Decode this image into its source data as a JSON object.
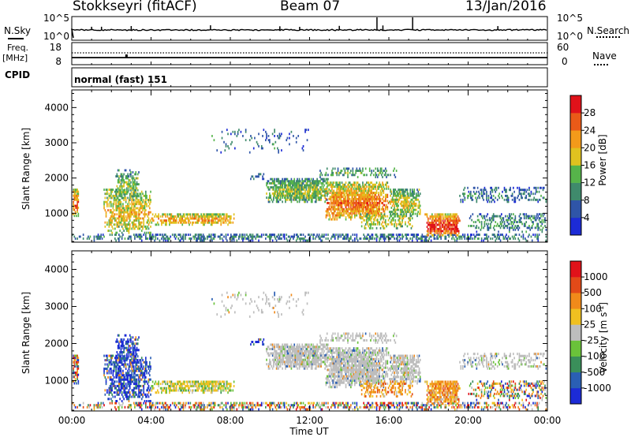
{
  "header": {
    "station": "Stokkseyri (fitACF)",
    "beam": "Beam 07",
    "date": "13/Jan/2016"
  },
  "strip_labels": {
    "nsky": "N.Sky",
    "nsearch": "N.Search",
    "freq": "Freq.",
    "freq_unit": "[MHz]",
    "nave": "Nave",
    "cpid": "CPID",
    "cpid_value": "normal (fast) 151"
  },
  "chart_data": [
    {
      "type": "line",
      "name": "noise-strip",
      "y_left_ticks": [
        "10^5",
        "10^0"
      ],
      "y_right_ticks": [
        "10^5",
        "10^0"
      ],
      "series": [
        {
          "name": "N.Sky",
          "style": "solid"
        },
        {
          "name": "N.Search",
          "style": "dotted"
        }
      ],
      "spikes_at_hours": [
        1,
        1.5,
        3,
        7,
        10.5,
        11.5,
        13.5,
        15.4,
        15.7,
        17.2,
        21.5
      ]
    },
    {
      "type": "line",
      "name": "freq-nave-strip",
      "y_left_ticks": [
        "18",
        "8"
      ],
      "y_right_ticks": [
        "60",
        "0"
      ],
      "series": [
        {
          "name": "Freq.",
          "style": "solid",
          "value_mhz": 10
        },
        {
          "name": "Nave",
          "style": "dotted",
          "value": 28
        }
      ]
    },
    {
      "type": "heatmap",
      "name": "power",
      "ylabel": "Slant Range [km]",
      "y_ticks": [
        1000,
        2000,
        3000,
        4000
      ],
      "ylim": [
        180,
        4500
      ],
      "colorbar_label": "Power [dB]",
      "colorbar_ticks": [
        "4",
        "8",
        "12",
        "16",
        "20",
        "24",
        "28"
      ],
      "colorbar_colors": [
        "#1c2bd6",
        "#2f55a8",
        "#3f8a6c",
        "#56b44a",
        "#e0c21f",
        "#f39a1a",
        "#ea5a18",
        "#e0121a"
      ]
    },
    {
      "type": "heatmap",
      "name": "velocity",
      "ylabel": "Slant Range [km]",
      "xlabel": "Time UT",
      "x_ticks": [
        "00:00",
        "04:00",
        "08:00",
        "12:00",
        "16:00",
        "20:00",
        "00:00"
      ],
      "y_ticks": [
        1000,
        2000,
        3000,
        4000
      ],
      "ylim": [
        180,
        4500
      ],
      "colorbar_label": "Velocity [m s^-1]",
      "colorbar_ticks": [
        "1000",
        "500",
        "100",
        "25",
        "-25",
        "-100",
        "-500",
        "-1000"
      ],
      "colorbar_colors": [
        "#1c2bd6",
        "#2a5fb4",
        "#3a8f5a",
        "#6ac23a",
        "#bdbdbd",
        "#f0c020",
        "#f18a1a",
        "#e24a18",
        "#e0121a"
      ]
    }
  ],
  "time_axis": {
    "label": "Time UT",
    "ticks": [
      "00:00",
      "04:00",
      "08:00",
      "12:00",
      "16:00",
      "20:00",
      "00:00"
    ]
  },
  "clusters": [
    {
      "t0": 0.0,
      "t1": 0.35,
      "r0": 900,
      "r1": 1700,
      "p": 22,
      "v": "mix",
      "density": 0.75
    },
    {
      "t0": 0.0,
      "t1": 24.0,
      "r0": 200,
      "r1": 420,
      "p": 8,
      "v": "mix",
      "density": 0.45
    },
    {
      "t0": 1.6,
      "t1": 4.0,
      "r0": 420,
      "r1": 1700,
      "p": 18,
      "v": "blue",
      "density": 0.6
    },
    {
      "t0": 2.2,
      "t1": 3.4,
      "r0": 1400,
      "r1": 2250,
      "p": 14,
      "v": "blue",
      "density": 0.5
    },
    {
      "t0": 4.0,
      "t1": 8.2,
      "r0": 650,
      "r1": 1000,
      "p": 20,
      "v": "yellow",
      "density": 0.7
    },
    {
      "t0": 9.8,
      "t1": 13.0,
      "r0": 1300,
      "r1": 2000,
      "p": 14,
      "v": "grey",
      "density": 0.85
    },
    {
      "t0": 12.8,
      "t1": 16.0,
      "r0": 800,
      "r1": 1900,
      "p": 22,
      "v": "grey",
      "density": 0.8
    },
    {
      "t0": 16.0,
      "t1": 17.6,
      "r0": 900,
      "r1": 1700,
      "p": 16,
      "v": "grey",
      "density": 0.65
    },
    {
      "t0": 12.5,
      "t1": 16.4,
      "r0": 2000,
      "r1": 2300,
      "p": 12,
      "v": "grey",
      "density": 0.35
    },
    {
      "t0": 17.8,
      "t1": 19.6,
      "r0": 350,
      "r1": 1000,
      "p": 26,
      "v": "orange",
      "density": 0.85
    },
    {
      "t0": 14.5,
      "t1": 17.2,
      "r0": 550,
      "r1": 1000,
      "p": 16,
      "v": "orange",
      "density": 0.45
    },
    {
      "t0": 19.5,
      "t1": 24.0,
      "r0": 1300,
      "r1": 1750,
      "p": 8,
      "v": "grey",
      "density": 0.35
    },
    {
      "t0": 20.0,
      "t1": 24.0,
      "r0": 450,
      "r1": 1000,
      "p": 10,
      "v": "mix",
      "density": 0.35
    },
    {
      "t0": 9.0,
      "t1": 9.7,
      "r0": 1950,
      "r1": 2150,
      "p": 8,
      "v": "blue",
      "density": 0.5
    },
    {
      "t0": 7.0,
      "t1": 12.0,
      "r0": 2700,
      "r1": 3400,
      "p": 8,
      "v": "grey",
      "density": 0.08
    }
  ],
  "colors": {
    "axis": "#000000",
    "background": "#ffffff"
  }
}
